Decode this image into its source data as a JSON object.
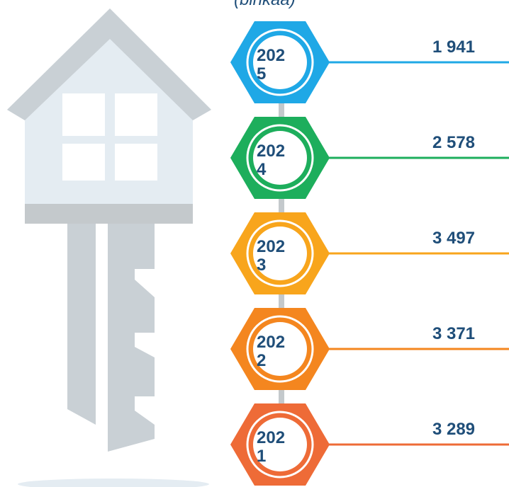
{
  "caption": "(binkaa)",
  "items": [
    {
      "year": "2025",
      "value": "1 941",
      "color": "#1fa8e6"
    },
    {
      "year": "2024",
      "value": "2 578",
      "color": "#1dae5c"
    },
    {
      "year": "2023",
      "value": "3 497",
      "color": "#f8a51c"
    },
    {
      "year": "2022",
      "value": "3 371",
      "color": "#f4861f"
    },
    {
      "year": "2021",
      "value": "3 289",
      "color": "#ee6b37"
    }
  ]
}
